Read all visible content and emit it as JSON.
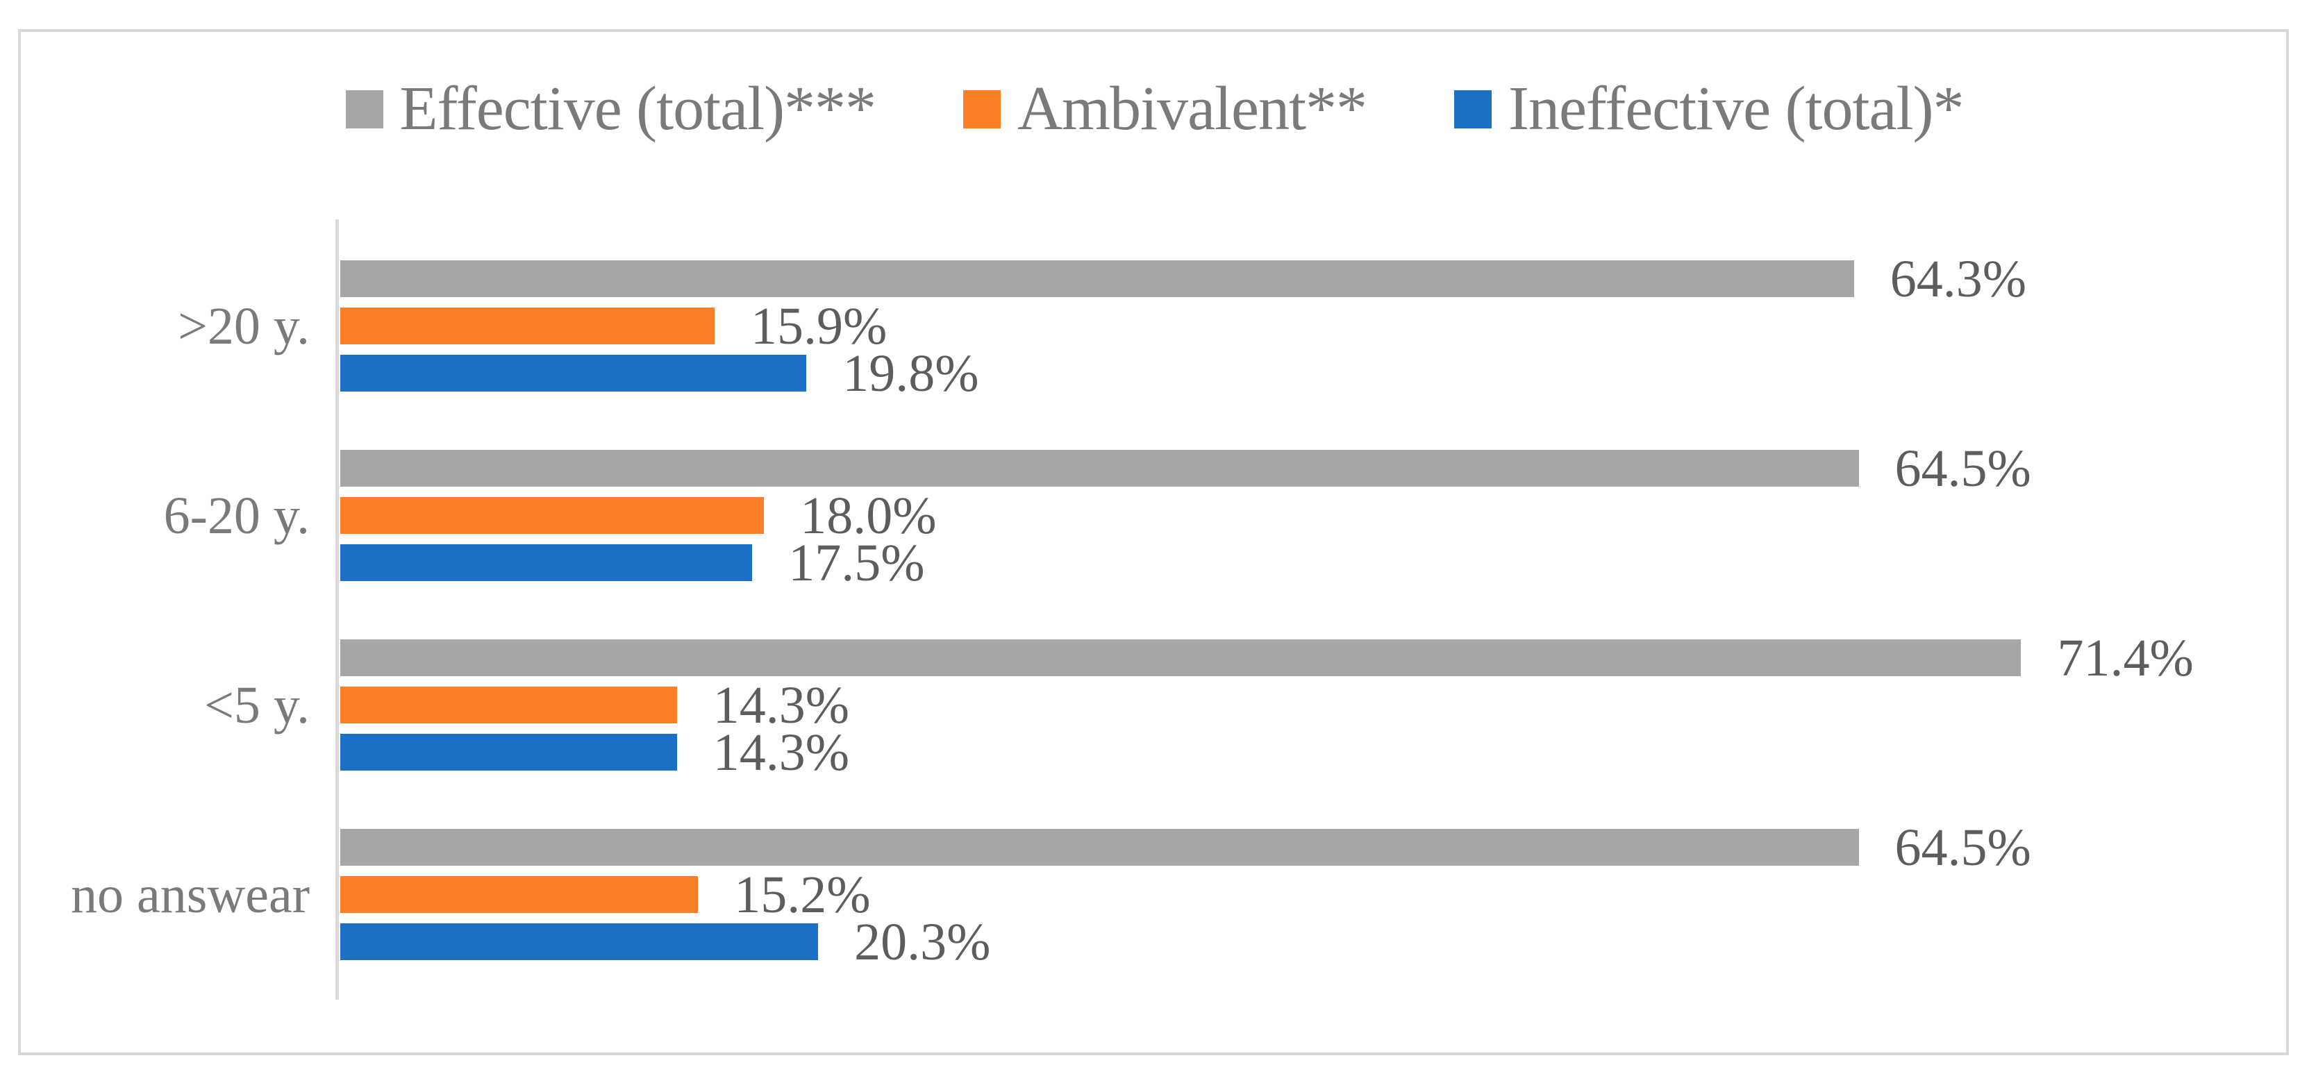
{
  "chart_data": {
    "type": "bar",
    "orientation": "horizontal",
    "title": "",
    "xlabel": "",
    "ylabel": "",
    "grid": false,
    "legend_position": "top",
    "xlim": [
      0,
      80
    ],
    "value_suffix": "%",
    "categories": [
      ">20 y.",
      "6-20 y.",
      "<5 y.",
      "no answear"
    ],
    "series": [
      {
        "name": "Effective (total)***",
        "color": "#a6a6a6",
        "values": [
          64.3,
          64.5,
          71.4,
          64.5
        ],
        "labels": [
          "64.3%",
          "64.5%",
          "71.4%",
          "64.5%"
        ]
      },
      {
        "name": "Ambivalent**",
        "color": "#fd7e26",
        "values": [
          15.9,
          18.0,
          14.3,
          15.2
        ],
        "labels": [
          "15.9%",
          "18.0%",
          "14.3%",
          "15.2%"
        ]
      },
      {
        "name": "Ineffective (total)*",
        "color": "#1c70c6",
        "values": [
          19.8,
          17.5,
          14.3,
          20.3
        ],
        "labels": [
          "19.8%",
          "17.5%",
          "14.3%",
          "20.3%"
        ]
      }
    ]
  },
  "colors": {
    "figure_border": "#d7d7d7",
    "axis_line": "#d9d9d9",
    "legend_text": "#7a7a7a",
    "category_text": "#7a7a7a",
    "value_text": "#5d5d5d",
    "background": "#ffffff"
  }
}
